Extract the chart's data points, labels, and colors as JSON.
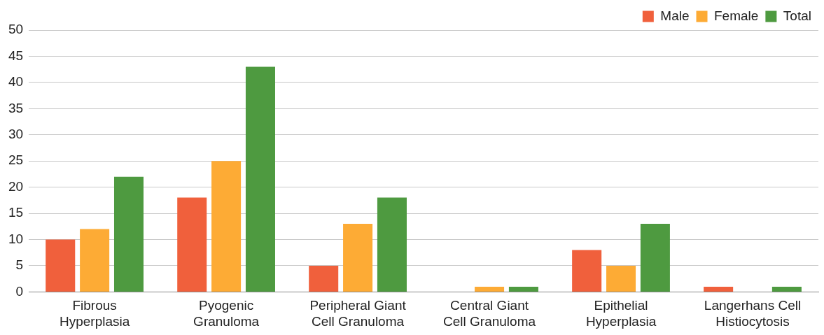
{
  "chart_data": {
    "type": "bar",
    "categories": [
      "Fibrous Hyperplasia",
      "Pyogenic Granuloma",
      "Peripheral Giant Cell Granuloma",
      "Central Giant Cell Granuloma",
      "Epithelial Hyperplasia",
      "Langerhans Cell Histiocytosis"
    ],
    "series": [
      {
        "name": "Male",
        "color": "#f0603c",
        "values": [
          10,
          18,
          5,
          0,
          8,
          1
        ]
      },
      {
        "name": "Female",
        "color": "#fdab35",
        "values": [
          12,
          25,
          13,
          1,
          5,
          0
        ]
      },
      {
        "name": "Total",
        "color": "#4e9a40",
        "values": [
          22,
          43,
          18,
          1,
          13,
          1
        ]
      }
    ],
    "ylim": [
      0,
      50
    ],
    "yticks": [
      0,
      5,
      10,
      15,
      20,
      25,
      30,
      35,
      40,
      45,
      50
    ],
    "grid": "y",
    "legend": "top right"
  }
}
